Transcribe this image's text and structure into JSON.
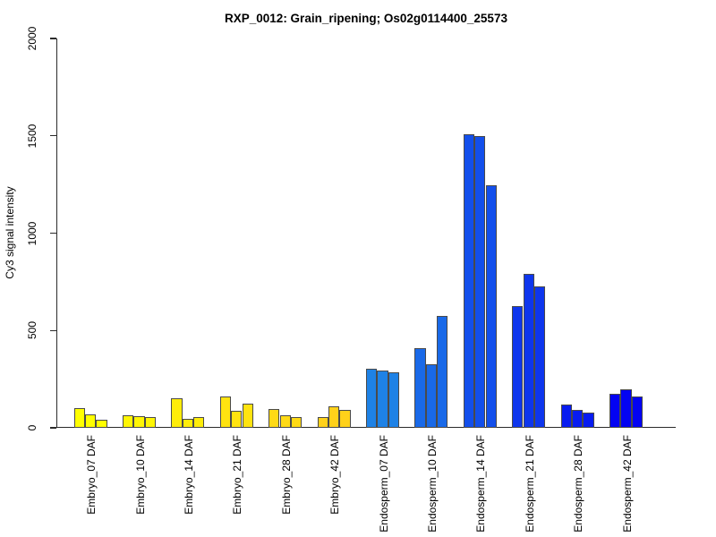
{
  "chart_data": {
    "type": "bar",
    "title": "RXP_0012: Grain_ripening; Os02g0114400_25573",
    "ylabel": "Cy3 signal intensity",
    "xlabel": "",
    "ylim": [
      0,
      2000
    ],
    "yticks": [
      0,
      500,
      1000,
      1500,
      2000
    ],
    "grid": false,
    "legend_position": "none",
    "bars_per_group": 3,
    "axis_color": "#2b2b2b",
    "bar_border_color": "#4a4a4a",
    "background_color": "#ffffff",
    "categories": [
      "Embryo_07 DAF",
      "Embryo_10 DAF",
      "Embryo_14 DAF",
      "Embryo_21 DAF",
      "Embryo_28 DAF",
      "Embryo_42 DAF",
      "Endosperm_07 DAF",
      "Endosperm_10 DAF",
      "Endosperm_14 DAF",
      "Endosperm_21 DAF",
      "Endosperm_28 DAF",
      "Endosperm_42 DAF"
    ],
    "groups": [
      {
        "label": "Embryo_07 DAF",
        "color": "#FFFF00",
        "values": [
          100,
          70,
          40
        ]
      },
      {
        "label": "Embryo_10 DAF",
        "color": "#FFF605",
        "values": [
          65,
          62,
          57
        ]
      },
      {
        "label": "Embryo_14 DAF",
        "color": "#FFED0A",
        "values": [
          150,
          48,
          57
        ]
      },
      {
        "label": "Embryo_21 DAF",
        "color": "#FFE310",
        "values": [
          162,
          88,
          122
        ]
      },
      {
        "label": "Embryo_28 DAF",
        "color": "#FFDA15",
        "values": [
          98,
          65,
          55
        ]
      },
      {
        "label": "Embryo_42 DAF",
        "color": "#FFD11A",
        "values": [
          55,
          110,
          92
        ]
      },
      {
        "label": "Endosperm_07 DAF",
        "color": "#1E82E6",
        "values": [
          305,
          295,
          287
        ]
      },
      {
        "label": "Endosperm_10 DAF",
        "color": "#1969E8",
        "values": [
          408,
          325,
          575
        ]
      },
      {
        "label": "Endosperm_14 DAF",
        "color": "#134FEB",
        "values": [
          1510,
          1498,
          1245
        ]
      },
      {
        "label": "Endosperm_21 DAF",
        "color": "#0E36ED",
        "values": [
          627,
          790,
          727
        ]
      },
      {
        "label": "Endosperm_28 DAF",
        "color": "#081CF0",
        "values": [
          121,
          90,
          80
        ]
      },
      {
        "label": "Endosperm_42 DAF",
        "color": "#0303F2",
        "values": [
          176,
          200,
          162
        ]
      }
    ]
  }
}
